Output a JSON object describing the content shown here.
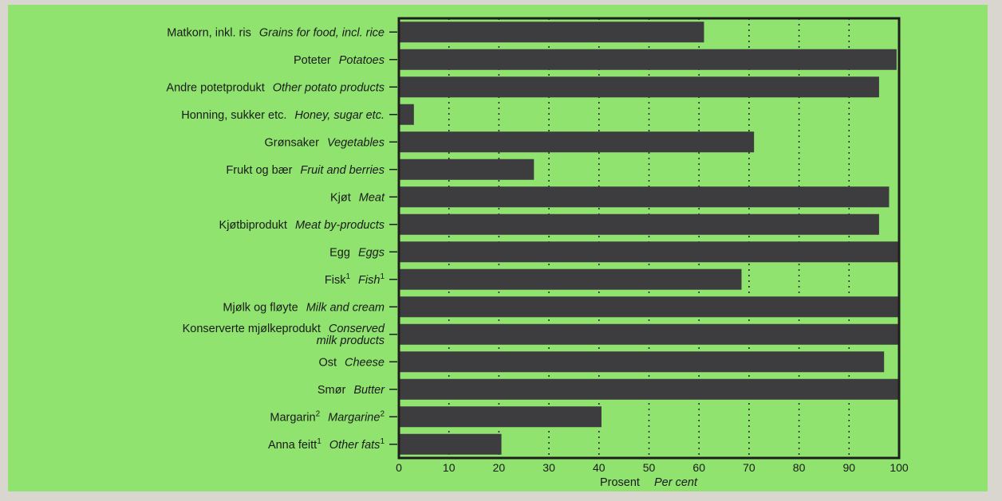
{
  "colors": {
    "background": "#8fe36e",
    "bar": "#3d3d3f",
    "frame": "#1e1e1e",
    "grid": "#1e1e1e"
  },
  "chart_data": {
    "type": "bar",
    "orientation": "horizontal",
    "categories": [
      {
        "no": "Matkorn, inkl. ris",
        "en": "Grains for food, incl. rice"
      },
      {
        "no": "Poteter",
        "en": "Potatoes"
      },
      {
        "no": "Andre potetprodukt",
        "en": "Other potato products"
      },
      {
        "no": "Honning, sukker etc.",
        "en": "Honey, sugar etc."
      },
      {
        "no": "Grønsaker",
        "en": "Vegetables"
      },
      {
        "no": "Frukt og bær",
        "en": "Fruit and berries"
      },
      {
        "no": "Kjøt",
        "en": "Meat"
      },
      {
        "no": "Kjøtbiprodukt",
        "en": "Meat by-products"
      },
      {
        "no": "Egg",
        "en": "Eggs"
      },
      {
        "no": "Fisk",
        "no_sup": "1",
        "en": "Fish",
        "en_sup": "1"
      },
      {
        "no": "Mjølk og fløyte",
        "en": "Milk and cream"
      },
      {
        "no": "Konserverte mjølkeprodukt",
        "en": "Conserved",
        "en2": "milk products"
      },
      {
        "no": "Ost",
        "en": "Cheese"
      },
      {
        "no": "Smør",
        "en": "Butter"
      },
      {
        "no": "Margarin",
        "no_sup": "2",
        "en": "Margarine",
        "en_sup": "2"
      },
      {
        "no": "Anna feitt",
        "no_sup": "1",
        "en": "Other fats",
        "en_sup": "1"
      }
    ],
    "values": [
      61,
      99.5,
      96,
      3,
      71,
      27,
      98,
      96,
      100,
      68.5,
      100,
      100,
      97,
      100,
      40.5,
      20.5
    ],
    "xlim": [
      0,
      100
    ],
    "xticks": [
      0,
      10,
      20,
      30,
      40,
      50,
      60,
      70,
      80,
      90,
      100
    ],
    "xlabel_no": "Prosent",
    "xlabel_en": "Per cent",
    "grid": "vertical dotted"
  }
}
